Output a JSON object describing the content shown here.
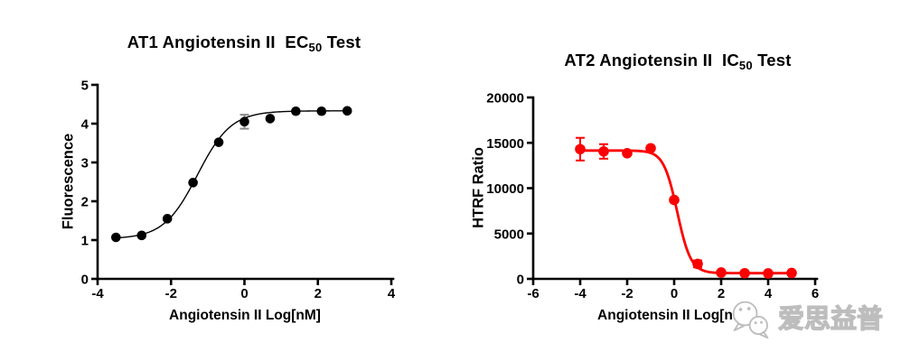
{
  "page": {
    "background": "#ffffff"
  },
  "watermark": {
    "icon": "wechat-logo",
    "text": "爱思益普",
    "text_color": "#ffffff",
    "outline_color": "#bdbdbd"
  },
  "chart_data": [
    {
      "type": "scatter",
      "title": {
        "main": "AT1 Angiotensin II  EC",
        "sub": "50",
        "tail": " Test"
      },
      "xlabel": "Angiotensin II Log[nM]",
      "ylabel": "Fluorescence",
      "series_color": "#000000",
      "error_color": "#8c8c8c",
      "curve_width": 1.4,
      "marker_radius": 5.3,
      "xlim": [
        -4,
        4
      ],
      "ylim": [
        0,
        5
      ],
      "xticks": [
        -4,
        -2,
        0,
        2,
        4
      ],
      "yticks": [
        0,
        1,
        2,
        3,
        4,
        5
      ],
      "points": {
        "x": [
          -3.5,
          -2.8,
          -2.1,
          -1.4,
          -0.7,
          0,
          0.7,
          1.4,
          2.1,
          2.8
        ],
        "y": [
          1.07,
          1.12,
          1.55,
          2.48,
          3.52,
          4.05,
          4.13,
          4.32,
          4.32,
          4.33
        ],
        "yerr": [
          0,
          0,
          0,
          0,
          0,
          0.18,
          0,
          0,
          0,
          0
        ]
      },
      "fit": {
        "model": "4PL",
        "bottom": 1.03,
        "top": 4.33,
        "logec50": -1.28,
        "hill": 0.95,
        "xstart": -3.5,
        "xend": 2.8
      }
    },
    {
      "type": "scatter",
      "title": {
        "main": "AT2 Angiotensin II  IC",
        "sub": "50",
        "tail": " Test"
      },
      "xlabel": "Angiotensin II Log[nM]",
      "ylabel": "HTRF Ratio",
      "series_color": "#fb0000",
      "error_color": "#fb0000",
      "curve_width": 2.8,
      "marker_radius": 5.8,
      "xlim": [
        -6,
        6
      ],
      "ylim": [
        0,
        20000
      ],
      "xticks": [
        -6,
        -4,
        -2,
        0,
        2,
        4,
        6
      ],
      "yticks": [
        0,
        5000,
        10000,
        15000,
        20000
      ],
      "points": {
        "x": [
          -4,
          -3,
          -2,
          -1,
          0,
          1,
          2,
          3,
          4,
          5
        ],
        "y": [
          14300,
          14050,
          13850,
          14400,
          8700,
          1650,
          700,
          620,
          600,
          650
        ],
        "yerr": [
          1250,
          800,
          0,
          0,
          0,
          380,
          0,
          0,
          0,
          0
        ]
      },
      "fit": {
        "model": "4PL",
        "bottom": 630,
        "top": 14150,
        "logec50": 0.13,
        "hill": -1.5,
        "xstart": -4,
        "xend": 5.05
      }
    }
  ]
}
